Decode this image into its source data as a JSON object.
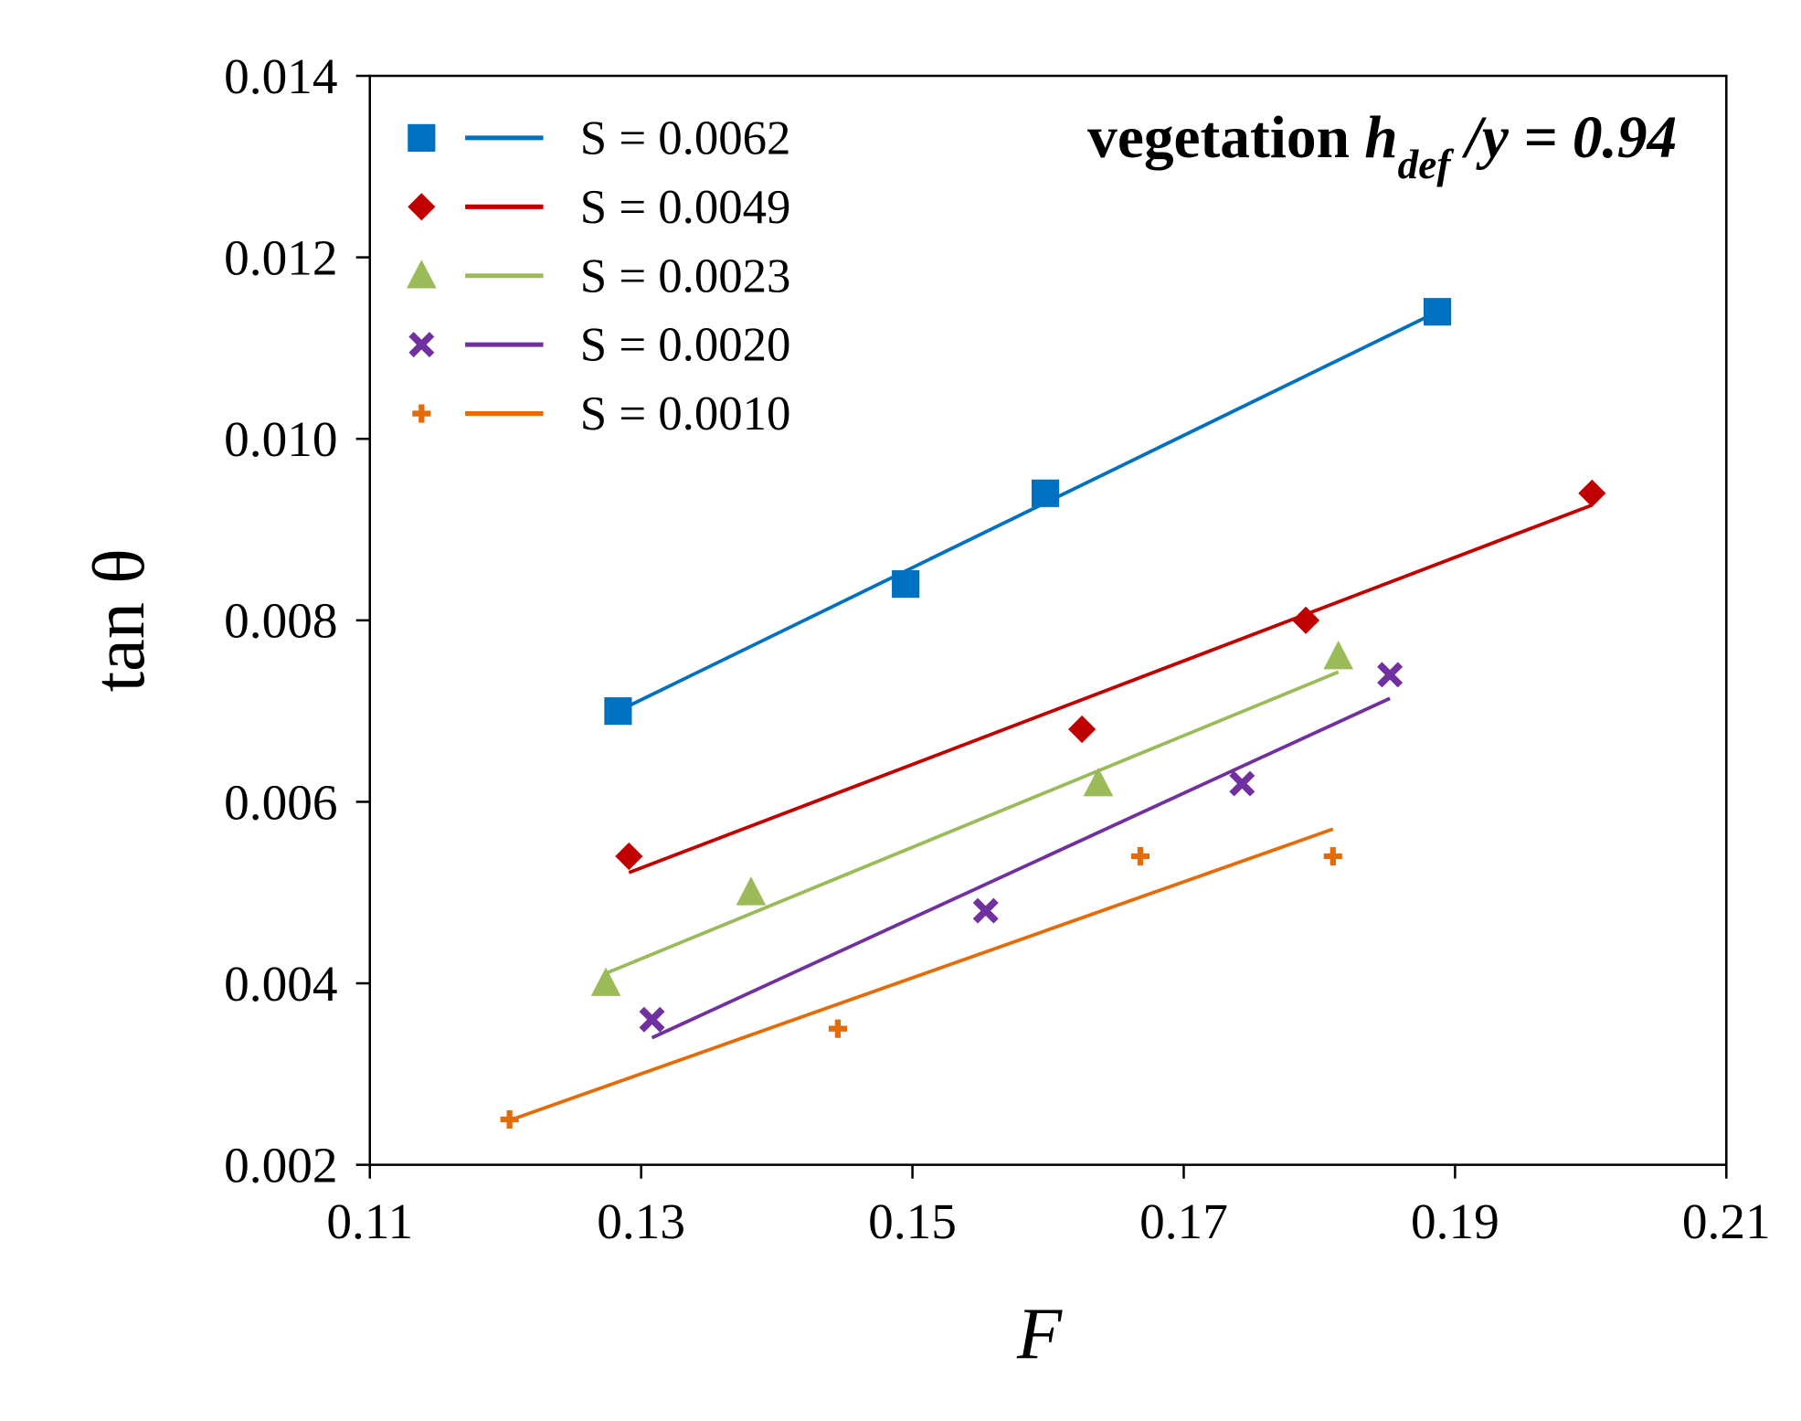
{
  "chart_data": {
    "type": "scatter",
    "title": "vegetation",
    "title_parts": {
      "prefix": "vegetation ",
      "var": "h",
      "sub": "def",
      "suffix": " /y = 0.94"
    },
    "xlabel": "F",
    "ylabel": "tan θ",
    "xlim": [
      0.11,
      0.21
    ],
    "ylim": [
      0.002,
      0.014
    ],
    "xticks": [
      "0.11",
      "0.13",
      "0.15",
      "0.17",
      "0.19",
      "0.21"
    ],
    "yticks": [
      "0.002",
      "0.004",
      "0.006",
      "0.008",
      "0.010",
      "0.012",
      "0.014"
    ],
    "grid": false,
    "legend_position": "top-left",
    "series": [
      {
        "name": "S = 0.0062",
        "color": "#0070C0",
        "marker": "square",
        "x": [
          0.1283,
          0.1495,
          0.1598,
          0.1887
        ],
        "y": [
          0.007,
          0.0084,
          0.0094,
          0.0114
        ],
        "trend": {
          "x": [
            0.1283,
            0.1887
          ],
          "y": [
            0.007,
            0.0114
          ]
        }
      },
      {
        "name": "S = 0.0049",
        "color": "#C00000",
        "marker": "diamond",
        "x": [
          0.1291,
          0.1625,
          0.179,
          0.2001
        ],
        "y": [
          0.0054,
          0.0068,
          0.008,
          0.0094
        ],
        "trend": {
          "x": [
            0.1291,
            0.2001
          ],
          "y": [
            0.00522,
            0.00927
          ]
        }
      },
      {
        "name": "S = 0.0023",
        "color": "#9BBB59",
        "marker": "triangle",
        "x": [
          0.1274,
          0.1381,
          0.1637,
          0.1814
        ],
        "y": [
          0.004,
          0.005,
          0.0062,
          0.0076
        ],
        "trend": {
          "x": [
            0.1274,
            0.1814
          ],
          "y": [
            0.00411,
            0.00743
          ]
        }
      },
      {
        "name": "S = 0.0020",
        "color": "#7030A0",
        "marker": "x",
        "x": [
          0.1308,
          0.1554,
          0.1743,
          0.1852
        ],
        "y": [
          0.0036,
          0.0048,
          0.0062,
          0.0074
        ],
        "trend": {
          "x": [
            0.1308,
            0.1852
          ],
          "y": [
            0.0034,
            0.00714
          ]
        }
      },
      {
        "name": "S = 0.0010",
        "color": "#E36C09",
        "marker": "plus",
        "x": [
          0.1203,
          0.1445,
          0.1668,
          0.181
        ],
        "y": [
          0.0025,
          0.0035,
          0.0054,
          0.0054
        ],
        "trend": {
          "x": [
            0.1203,
            0.181
          ],
          "y": [
            0.00249,
            0.0057
          ]
        }
      }
    ]
  }
}
